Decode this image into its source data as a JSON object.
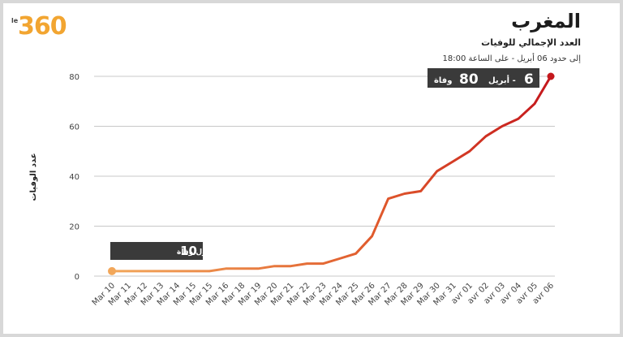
{
  "logo": {
    "text": "360",
    "prefix": "le"
  },
  "header": {
    "title": "المغرب",
    "subtitle": "العدد الإجمالي للوفيات",
    "timestamp": "إلى حدود 06 أبريل - على الساعة 18:00"
  },
  "colors": {
    "line_start": "#f2a75a",
    "line_end": "#c4171c",
    "grid": "#c8c8c8",
    "annotation_bg": "#3a3a3a",
    "logo": "#f2a531"
  },
  "chart_data": {
    "type": "line",
    "title": "المغرب",
    "ylabel": "عدد الوفيات",
    "xlabel": "",
    "ylim": [
      0,
      80
    ],
    "yticks": [
      0,
      20,
      40,
      60,
      80
    ],
    "grid": true,
    "categories": [
      "Mar 10",
      "Mar 11",
      "Mar 12",
      "Mar 13",
      "Mar 14",
      "Mar 15",
      "Mar 15",
      "Mar 16",
      "Mar 18",
      "Mar 19",
      "Mar 20",
      "Mar 21",
      "Mar 22",
      "Mar 23",
      "Mar 24",
      "Mar 25",
      "Mar 26",
      "Mar 27",
      "Mar 28",
      "Mar 29",
      "Mar 30",
      "Mar 31",
      "avr 01",
      "avr 02",
      "avr 03",
      "avr 04",
      "avr 05",
      "avr 06"
    ],
    "series": [
      {
        "values": [
          2,
          2,
          2,
          2,
          2,
          2,
          2,
          3,
          3,
          3,
          4,
          4,
          5,
          5,
          7,
          9,
          16,
          31,
          33,
          34,
          42,
          46,
          50,
          56,
          60,
          63,
          69,
          80
        ]
      }
    ],
    "annotations": [
      {
        "label": "10 مارس - أول وفاة",
        "number": "10",
        "text": "مارس - أول وفاة",
        "point_index": 0
      },
      {
        "label": "6 أبريل - 80 وفاة",
        "number_left": "80",
        "number_right": "6",
        "text_left": "وفاة",
        "text_mid": "أبريل -",
        "point_index": 27
      }
    ]
  }
}
